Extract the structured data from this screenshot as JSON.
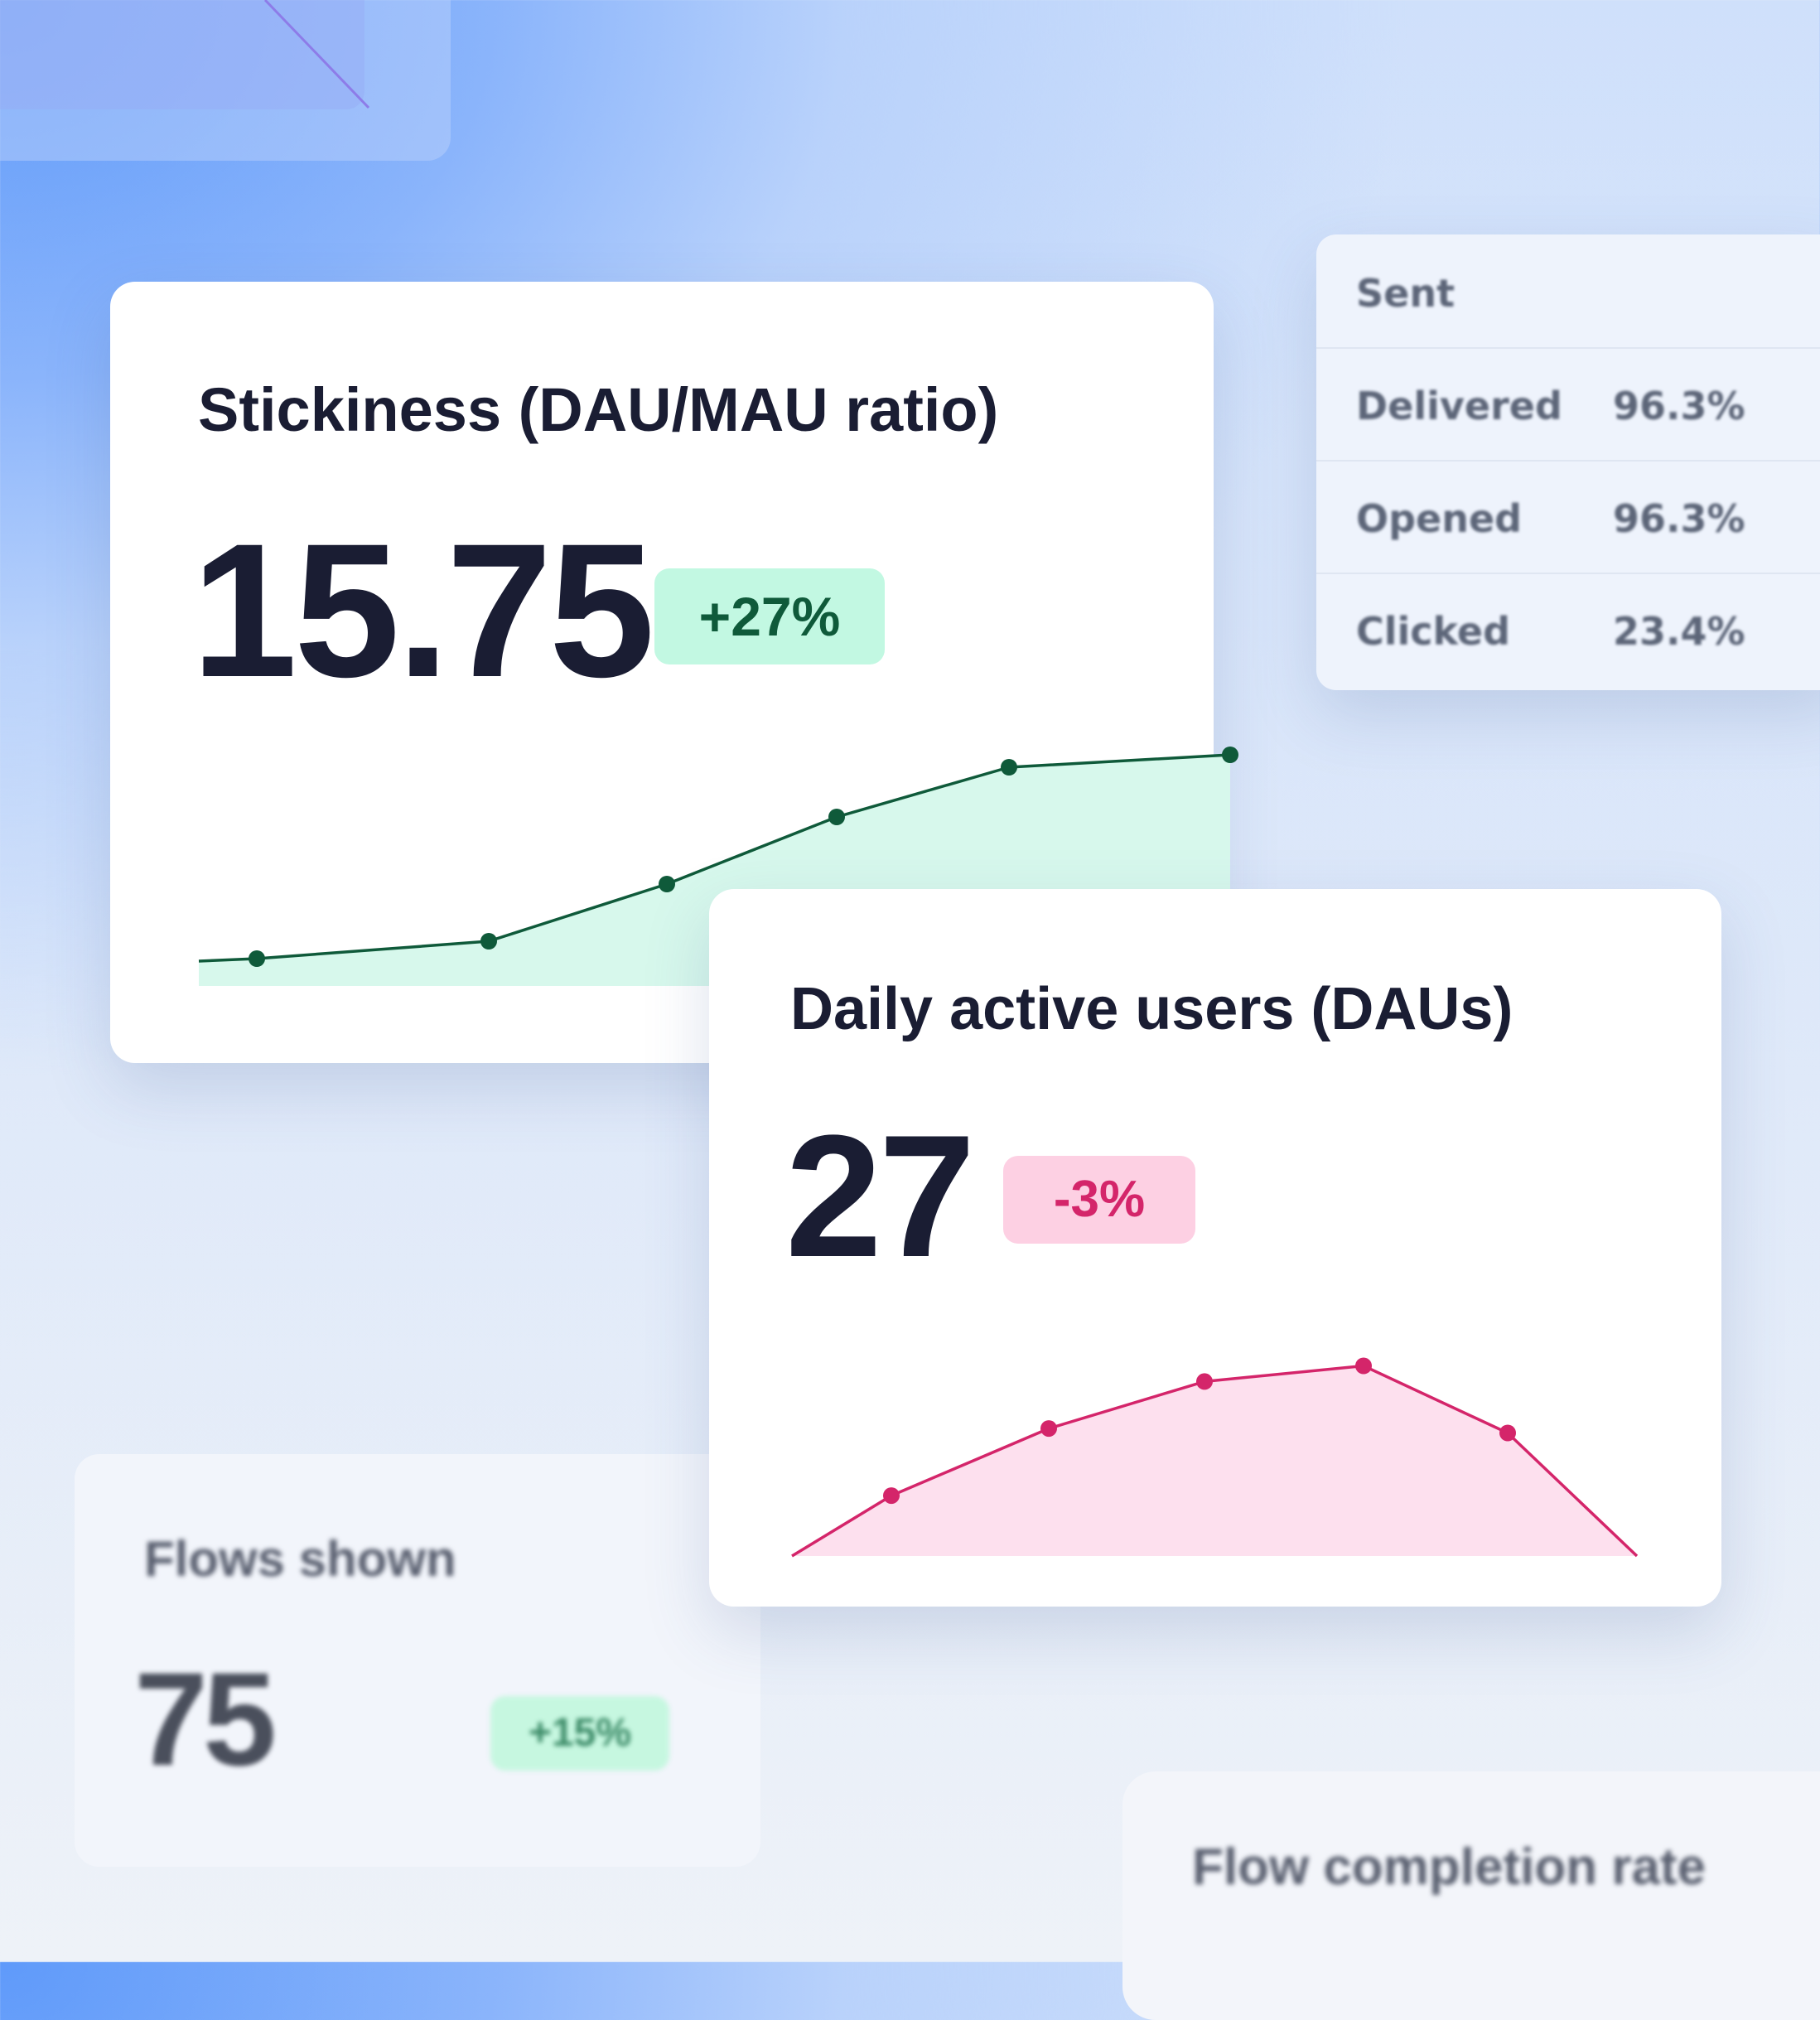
{
  "sent_table": {
    "header": "Sent",
    "rows": [
      {
        "label": "Delivered",
        "value": "96.3%"
      },
      {
        "label": "Opened",
        "value": "96.3%"
      },
      {
        "label": "Clicked",
        "value": "23.4%"
      }
    ]
  },
  "stickiness": {
    "title": "Stickiness (DAU/MAU ratio)",
    "value": "15.75",
    "change": "+27%",
    "line_color": "#0f5a3a",
    "fill_color": "#d7f8ec",
    "badge_bg": "#c2f8e2"
  },
  "dau": {
    "title": "Daily active users (DAUs)",
    "value": "27",
    "change": "-3%",
    "line_color": "#d4256a",
    "fill_color": "#fde0ee",
    "badge_bg": "#fdd0e3"
  },
  "flows_shown": {
    "title": "Flows shown",
    "value": "75",
    "change": "+15%"
  },
  "flow_completion": {
    "title": "Flow completion rate"
  },
  "chart_data": [
    {
      "type": "area",
      "series": [
        {
          "values": [
            1.0,
            1.1,
            1.8,
            4.1,
            6.8,
            8.8,
            9.3
          ]
        }
      ],
      "marker_indices": [
        1,
        2,
        3,
        4,
        5,
        6
      ],
      "ylim": [
        0,
        10
      ]
    },
    {
      "type": "area",
      "series": [
        {
          "values": [
            0.0,
            2.7,
            5.7,
            7.8,
            8.5,
            5.5,
            0.0
          ]
        }
      ],
      "marker_indices": [
        1,
        2,
        3,
        4,
        5
      ],
      "ylim": [
        0,
        10
      ]
    }
  ]
}
